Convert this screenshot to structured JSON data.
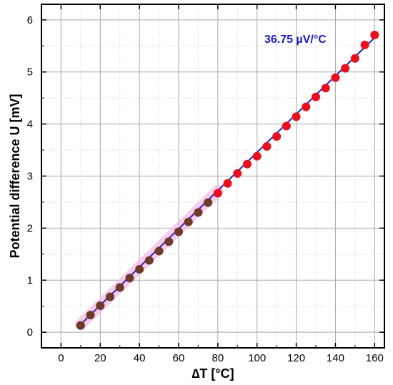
{
  "chart_data": {
    "type": "scatter",
    "xlabel": "∆T [°C]",
    "ylabel": "Potential difference U [mV]",
    "xlim": [
      -10,
      165
    ],
    "ylim": [
      -0.3,
      6.3
    ],
    "xticks": [
      0,
      20,
      40,
      60,
      80,
      100,
      120,
      140,
      160
    ],
    "yticks": [
      0,
      1,
      2,
      3,
      4,
      5,
      6
    ],
    "grid": true,
    "annotation": "36.75 µV/°C",
    "colors": {
      "marker": "#e8101c",
      "marker_dark": "#6e3a2a",
      "fit_line": "#2a1fb8",
      "glow": "#f5b8e8",
      "annotation": "#1a1ac8"
    },
    "series": [
      {
        "x": [
          10,
          15,
          20,
          25,
          30,
          35,
          40,
          45,
          50,
          55,
          60,
          65,
          70,
          75,
          80,
          85,
          90,
          95,
          100,
          105,
          110,
          115,
          120,
          125,
          130,
          135,
          140,
          145,
          150,
          155,
          160
        ],
        "y": [
          0.13,
          0.33,
          0.51,
          0.68,
          0.86,
          1.04,
          1.21,
          1.38,
          1.56,
          1.74,
          1.93,
          2.12,
          2.3,
          2.49,
          2.67,
          2.86,
          3.05,
          3.23,
          3.38,
          3.57,
          3.76,
          3.96,
          4.14,
          4.33,
          4.52,
          4.69,
          4.89,
          5.07,
          5.26,
          5.52,
          5.71
        ]
      }
    ],
    "fit": {
      "x": [
        10,
        160
      ],
      "y": [
        0.15,
        5.66
      ]
    }
  }
}
